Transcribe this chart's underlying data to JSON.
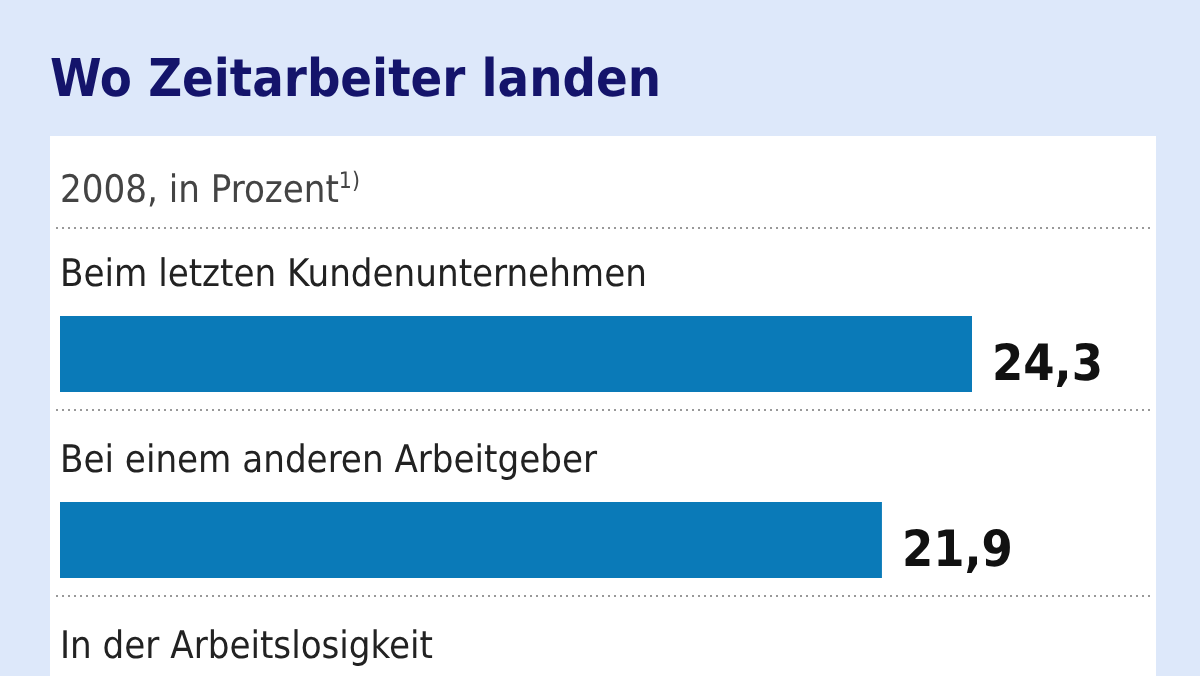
{
  "chart_data": {
    "type": "bar",
    "orientation": "horizontal",
    "title": "Wo Zeitarbeiter landen",
    "subtitle": "2008, in Prozent$^{1)}$",
    "categories": [
      "Beim letzten Kundenunternehmen",
      "Bei einem anderen Arbeitgeber",
      "In der Arbeitslosigkeit"
    ],
    "values": [
      24.3,
      21.9,
      null
    ],
    "color": "#0a7ab8",
    "data_labels": true,
    "value_labels": [
      "24,3",
      "21,9",
      null
    ]
  }
}
